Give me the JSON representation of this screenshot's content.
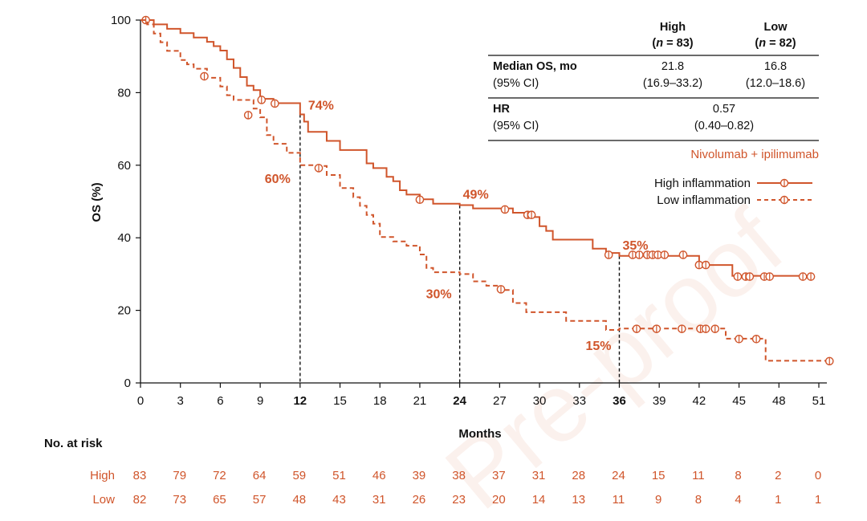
{
  "chart_data": {
    "type": "line",
    "title": "",
    "xlabel": "Months",
    "ylabel": "OS (%)",
    "xlim": [
      0,
      51
    ],
    "ylim": [
      0,
      100
    ],
    "xticks": [
      "0",
      "3",
      "6",
      "9",
      "12",
      "15",
      "18",
      "21",
      "24",
      "27",
      "30",
      "33",
      "36",
      "39",
      "42",
      "45",
      "48",
      "51"
    ],
    "bold_xticks": [
      "12",
      "24",
      "36"
    ],
    "yticks": [
      "0",
      "20",
      "40",
      "60",
      "80",
      "100"
    ],
    "series": [
      {
        "name": "High inflammation",
        "style": "solid",
        "color": "#d0552b",
        "steps": [
          [
            0,
            100
          ],
          [
            1,
            98.8
          ],
          [
            2,
            97.6
          ],
          [
            3,
            96.4
          ],
          [
            4,
            95.2
          ],
          [
            5,
            94
          ],
          [
            5.5,
            92.8
          ],
          [
            6,
            91.6
          ],
          [
            6.5,
            89.2
          ],
          [
            7,
            86.8
          ],
          [
            7.5,
            84.3
          ],
          [
            8,
            81.9
          ],
          [
            8.5,
            80.7
          ],
          [
            9,
            78.3
          ],
          [
            10,
            77.1
          ],
          [
            12,
            74
          ],
          [
            12.3,
            72
          ],
          [
            12.6,
            69.2
          ],
          [
            14,
            66.7
          ],
          [
            15,
            64.2
          ],
          [
            17,
            60.5
          ],
          [
            17.5,
            59.2
          ],
          [
            18.5,
            56.8
          ],
          [
            19,
            55.6
          ],
          [
            19.5,
            53.1
          ],
          [
            20,
            51.9
          ],
          [
            21,
            50.6
          ],
          [
            22,
            49.4
          ],
          [
            24,
            49
          ],
          [
            25,
            48.1
          ],
          [
            27,
            48.1
          ],
          [
            28,
            46.9
          ],
          [
            29,
            45.7
          ],
          [
            30,
            43.2
          ],
          [
            30.5,
            41.9
          ],
          [
            31,
            39.5
          ],
          [
            33,
            39.5
          ],
          [
            34,
            37
          ],
          [
            35,
            35.8
          ],
          [
            36,
            35
          ],
          [
            42,
            32.5
          ],
          [
            44,
            32.5
          ],
          [
            44.5,
            29.5
          ],
          [
            50.5,
            29.5
          ]
        ],
        "censors": [
          [
            0.4,
            100
          ],
          [
            9.1,
            78
          ],
          [
            10.1,
            77
          ],
          [
            21,
            50.5
          ],
          [
            27.4,
            47.8
          ],
          [
            29.1,
            46.3
          ],
          [
            29.4,
            46.3
          ],
          [
            35.2,
            35.3
          ],
          [
            37,
            35.3
          ],
          [
            37.5,
            35.3
          ],
          [
            38.1,
            35.3
          ],
          [
            38.5,
            35.3
          ],
          [
            38.9,
            35.3
          ],
          [
            39.4,
            35.3
          ],
          [
            40.8,
            35.3
          ],
          [
            42,
            32.5
          ],
          [
            42.5,
            32.5
          ],
          [
            44.9,
            29.3
          ],
          [
            45.5,
            29.3
          ],
          [
            45.8,
            29.3
          ],
          [
            46.9,
            29.3
          ],
          [
            47.3,
            29.3
          ],
          [
            49.8,
            29.3
          ],
          [
            50.4,
            29.3
          ]
        ]
      },
      {
        "name": "Low inflammation",
        "style": "dashed",
        "color": "#d0552b",
        "steps": [
          [
            0,
            100
          ],
          [
            0.5,
            98.8
          ],
          [
            1,
            96.3
          ],
          [
            1.5,
            93.9
          ],
          [
            2,
            91.5
          ],
          [
            3,
            89
          ],
          [
            3.5,
            87.8
          ],
          [
            4,
            86.6
          ],
          [
            5,
            84.1
          ],
          [
            6,
            81.7
          ],
          [
            6.5,
            79.3
          ],
          [
            7,
            78
          ],
          [
            8,
            78
          ],
          [
            8.5,
            75.6
          ],
          [
            9,
            73.2
          ],
          [
            9.5,
            68.3
          ],
          [
            10,
            65.9
          ],
          [
            11,
            63.4
          ],
          [
            12,
            60
          ],
          [
            12.5,
            60
          ],
          [
            13,
            59.8
          ],
          [
            14,
            57.3
          ],
          [
            15,
            53.7
          ],
          [
            16,
            51.2
          ],
          [
            16.5,
            48.8
          ],
          [
            17,
            46.3
          ],
          [
            17.5,
            43.9
          ],
          [
            18,
            40.2
          ],
          [
            19,
            39
          ],
          [
            20,
            37.8
          ],
          [
            21,
            35.4
          ],
          [
            21.5,
            31.7
          ],
          [
            22,
            30.5
          ],
          [
            24,
            30
          ],
          [
            25,
            28
          ],
          [
            26,
            26.8
          ],
          [
            27,
            25.6
          ],
          [
            28,
            22
          ],
          [
            29,
            19.5
          ],
          [
            30,
            19.5
          ],
          [
            32,
            17.1
          ],
          [
            34,
            17.1
          ],
          [
            35,
            14.6
          ],
          [
            36,
            15
          ],
          [
            37,
            15
          ],
          [
            43,
            15
          ],
          [
            44,
            12.2
          ],
          [
            46.5,
            12.2
          ],
          [
            47,
            6.1
          ],
          [
            51.5,
            6.1
          ]
        ],
        "censors": [
          [
            4.8,
            84.5
          ],
          [
            8.1,
            73.8
          ],
          [
            13.4,
            59.2
          ],
          [
            27.1,
            25.8
          ],
          [
            37.3,
            14.9
          ],
          [
            38.8,
            14.9
          ],
          [
            40.7,
            14.9
          ],
          [
            42.1,
            14.9
          ],
          [
            42.5,
            14.9
          ],
          [
            43.2,
            14.9
          ],
          [
            45,
            12.1
          ],
          [
            46.3,
            12.1
          ],
          [
            51.8,
            6
          ]
        ]
      }
    ],
    "reference_lines": [
      {
        "x": 12,
        "y": 74
      },
      {
        "x": 24,
        "y": 49
      },
      {
        "x": 36,
        "y": 35
      }
    ],
    "annotations": [
      {
        "text": "74%",
        "series": "High inflammation",
        "x": 12
      },
      {
        "text": "60%",
        "series": "Low inflammation",
        "x": 12
      },
      {
        "text": "49%",
        "series": "High inflammation",
        "x": 24
      },
      {
        "text": "30%",
        "series": "Low inflammation",
        "x": 24
      },
      {
        "text": "35%",
        "series": "High inflammation",
        "x": 36
      },
      {
        "text": "15%",
        "series": "Low inflammation",
        "x": 36
      }
    ]
  },
  "legend": {
    "title": "Nivolumab + ipilimumab",
    "items": [
      "High inflammation",
      "Low inflammation"
    ]
  },
  "stats_table": {
    "col_headers": [
      {
        "name": "High",
        "n_label": "n",
        "n_value": " = 83)"
      },
      {
        "name": "Low",
        "n_label": "n",
        "n_value": " = 82)"
      }
    ],
    "rows": [
      {
        "label": "Median OS, mo",
        "sublabel": "(95% CI)",
        "high": "21.8",
        "high_ci": "(16.9–33.2)",
        "low": "16.8",
        "low_ci": "(12.0–18.6)"
      }
    ],
    "hr": {
      "label": "HR",
      "sublabel": "(95% CI)",
      "value": "0.57",
      "ci": "(0.40–0.82)"
    }
  },
  "risk_table": {
    "title": "No. at risk",
    "rows": [
      {
        "label": "High",
        "values": [
          "83",
          "79",
          "72",
          "64",
          "59",
          "51",
          "46",
          "39",
          "38",
          "37",
          "31",
          "28",
          "24",
          "15",
          "11",
          "8",
          "2",
          "0"
        ]
      },
      {
        "label": "Low",
        "values": [
          "82",
          "73",
          "65",
          "57",
          "48",
          "43",
          "31",
          "26",
          "23",
          "20",
          "14",
          "13",
          "11",
          "9",
          "8",
          "4",
          "1",
          "1"
        ]
      }
    ]
  },
  "watermark": "Pre-proof"
}
